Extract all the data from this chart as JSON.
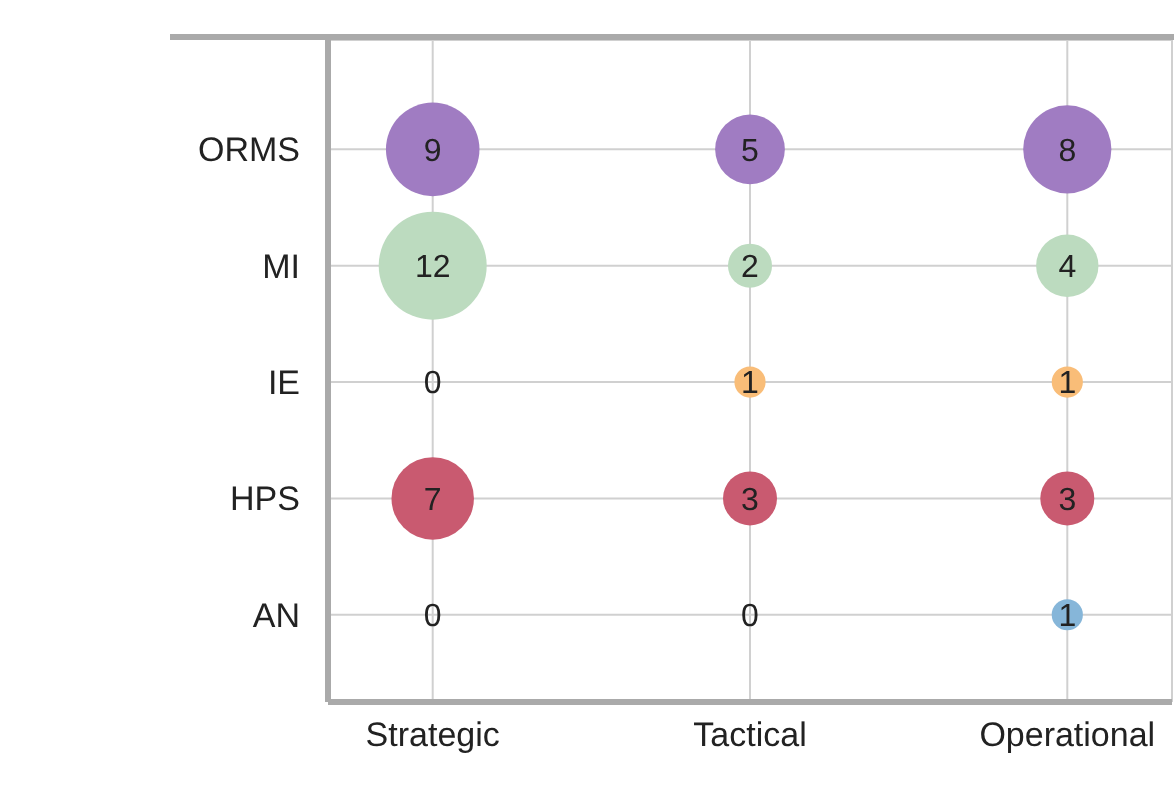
{
  "chart_data": {
    "type": "heatmap",
    "categories": [
      "Strategic",
      "Tactical",
      "Operational"
    ],
    "y_categories": [
      "ORMS",
      "MI",
      "IE",
      "HPS",
      "AN"
    ],
    "cells": [
      [
        9,
        5,
        8
      ],
      [
        12,
        2,
        4
      ],
      [
        0,
        1,
        1
      ],
      [
        7,
        3,
        3
      ],
      [
        0,
        0,
        1
      ]
    ],
    "colors": [
      "#a07cc2",
      "#bcdbbf",
      "#f9bd78",
      "#c95a70",
      "#86b6d9"
    ],
    "data_labels": true,
    "grid": true
  }
}
